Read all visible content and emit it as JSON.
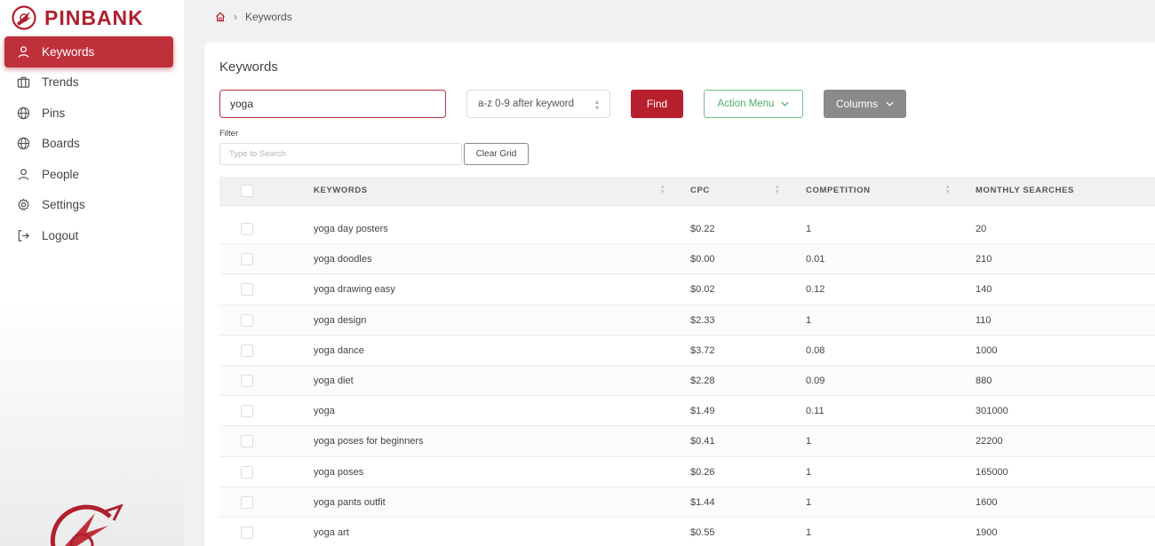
{
  "app": {
    "brand": "PINBANK",
    "brand_color": "#b0202e"
  },
  "sidebar": {
    "items": [
      {
        "label": "Keywords",
        "icon": "user-icon",
        "active": true
      },
      {
        "label": "Trends",
        "icon": "briefcase-icon"
      },
      {
        "label": "Pins",
        "icon": "globe-icon"
      },
      {
        "label": "Boards",
        "icon": "globe-icon"
      },
      {
        "label": "People",
        "icon": "user-icon"
      },
      {
        "label": "Settings",
        "icon": "gear-icon"
      },
      {
        "label": "Logout",
        "icon": "logout-icon"
      }
    ]
  },
  "breadcrumb": {
    "home_icon": "home-icon",
    "current": "Keywords"
  },
  "main": {
    "title": "Keywords",
    "search": {
      "value": "yoga"
    },
    "sort_select": {
      "value": "a-z 0-9 after keyword"
    },
    "find_label": "Find",
    "action_menu_label": "Action Menu",
    "columns_label": "Columns",
    "filter": {
      "label": "Filter",
      "placeholder": "Type to Search"
    },
    "clear_grid_label": "Clear Grid"
  },
  "table": {
    "headers": {
      "keywords": "KEYWORDS",
      "cpc": "CPC",
      "competition": "COMPETITION",
      "monthly_searches": "MONTHLY SEARCHES"
    },
    "rows": [
      {
        "keyword": "yoga day posters",
        "cpc": "$0.22",
        "competition": "1",
        "monthly_searches": "20"
      },
      {
        "keyword": "yoga doodles",
        "cpc": "$0.00",
        "competition": "0.01",
        "monthly_searches": "210"
      },
      {
        "keyword": "yoga drawing easy",
        "cpc": "$0.02",
        "competition": "0.12",
        "monthly_searches": "140"
      },
      {
        "keyword": "yoga design",
        "cpc": "$2.33",
        "competition": "1",
        "monthly_searches": "110"
      },
      {
        "keyword": "yoga dance",
        "cpc": "$3.72",
        "competition": "0.08",
        "monthly_searches": "1000"
      },
      {
        "keyword": "yoga diet",
        "cpc": "$2.28",
        "competition": "0.09",
        "monthly_searches": "880"
      },
      {
        "keyword": "yoga",
        "cpc": "$1.49",
        "competition": "0.11",
        "monthly_searches": "301000"
      },
      {
        "keyword": "yoga poses for beginners",
        "cpc": "$0.41",
        "competition": "1",
        "monthly_searches": "22200"
      },
      {
        "keyword": "yoga poses",
        "cpc": "$0.26",
        "competition": "1",
        "monthly_searches": "165000"
      },
      {
        "keyword": "yoga pants outfit",
        "cpc": "$1.44",
        "competition": "1",
        "monthly_searches": "1600"
      },
      {
        "keyword": "yoga art",
        "cpc": "$0.55",
        "competition": "1",
        "monthly_searches": "1900"
      }
    ]
  }
}
